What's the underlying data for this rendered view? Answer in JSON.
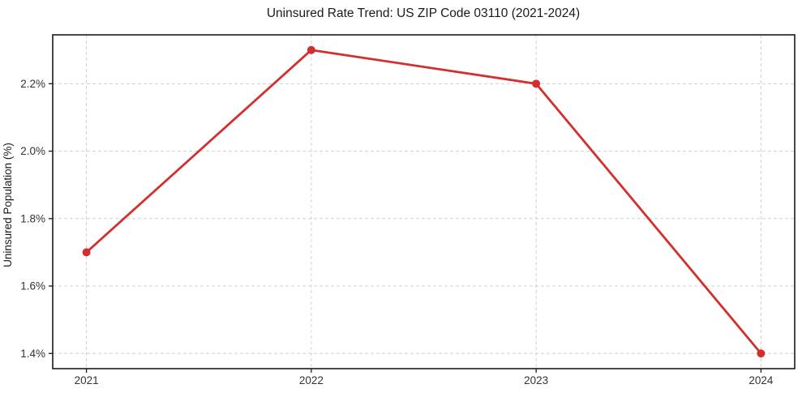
{
  "figure": {
    "title": "Uninsured Rate Trend: US ZIP Code 03110 (2021-2024)"
  },
  "colors": {
    "line": "#d32f2f",
    "marker": "#d32f2f",
    "grid": "#d0d0d0",
    "spine": "#1a1a1a",
    "tick": "#1a1a1a",
    "tick_label": "#333333",
    "title": "#1a1a1a",
    "background": "#ffffff"
  },
  "chart_data": {
    "type": "line",
    "title": "Uninsured Rate Trend: US ZIP Code 03110 (2021-2024)",
    "xlabel": "",
    "ylabel": "Uninsured Population (%)",
    "x": [
      2021,
      2022,
      2023,
      2024
    ],
    "values": [
      1.7,
      2.3,
      2.2,
      1.4
    ],
    "x_tick_labels": [
      "2021",
      "2022",
      "2023",
      "2024"
    ],
    "x_ticks": [
      2021,
      2022,
      2023,
      2024
    ],
    "y_ticks": [
      1.4,
      1.6,
      1.8,
      2.0,
      2.2
    ],
    "y_tick_labels": [
      "1.4%",
      "1.6%",
      "1.8%",
      "2.0%",
      "2.2%"
    ],
    "xlim": [
      2020.85,
      2024.15
    ],
    "ylim": [
      1.355,
      2.345
    ],
    "grid": "dashed",
    "legend": "none",
    "marker": "circle",
    "line_width": 2.8,
    "marker_radius": 5
  }
}
